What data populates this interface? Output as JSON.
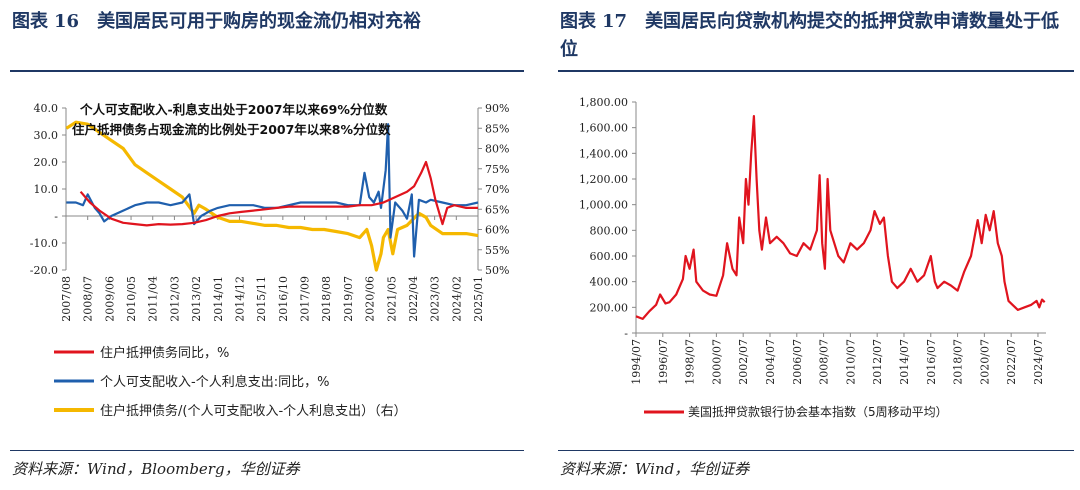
{
  "left": {
    "fig_label": "图表",
    "fig_num": "16",
    "title": "美国居民可用于购房的现金流仍相对充裕",
    "source": "资料来源：Wind，Bloomberg，华创证券",
    "colors": {
      "red": "#e0141e",
      "blue": "#1f5fad",
      "yellow": "#f5b800"
    },
    "chart_data": {
      "type": "line",
      "annotations": [
        "个人可支配收入-利息支出处于2007年以来69%分位数",
        "住户抵押债务占现金流的比例处于2007年以来8%分位数"
      ],
      "x_ticks": [
        "2007/08",
        "2008/07",
        "2009/06",
        "2010/05",
        "2011/04",
        "2012/03",
        "2013/02",
        "2014/01",
        "2014/12",
        "2015/11",
        "2016/10",
        "2017/09",
        "2018/08",
        "2019/07",
        "2020/06",
        "2021/05",
        "2022/04",
        "2023/03",
        "2024/02",
        "2025/01"
      ],
      "y_left": {
        "range": [
          -20,
          40
        ],
        "ticks": [
          "-20.0",
          "-10.0",
          "-",
          "10.0",
          "20.0",
          "30.0",
          "40.0"
        ]
      },
      "y_right": {
        "range": [
          50,
          90
        ],
        "ticks": [
          "50%",
          "55%",
          "60%",
          "65%",
          "70%",
          "75%",
          "80%",
          "85%",
          "90%"
        ]
      },
      "series": [
        {
          "name": "住户抵押债务同比，%",
          "axis": "left",
          "points": [
            [
              2008.2,
              9
            ],
            [
              2008.6,
              5
            ],
            [
              2009.0,
              2
            ],
            [
              2009.5,
              -1
            ],
            [
              2010.0,
              -2.5
            ],
            [
              2010.5,
              -3
            ],
            [
              2011.0,
              -3.5
            ],
            [
              2011.5,
              -3
            ],
            [
              2012.0,
              -3.2
            ],
            [
              2012.5,
              -3
            ],
            [
              2013.0,
              -2.5
            ],
            [
              2013.5,
              -1.5
            ],
            [
              2014.0,
              0
            ],
            [
              2014.5,
              1
            ],
            [
              2015.0,
              1.5
            ],
            [
              2015.5,
              2
            ],
            [
              2016.0,
              2.5
            ],
            [
              2016.5,
              3
            ],
            [
              2017.0,
              3.5
            ],
            [
              2017.5,
              3.5
            ],
            [
              2018.0,
              3.5
            ],
            [
              2018.5,
              3.5
            ],
            [
              2019.0,
              3.5
            ],
            [
              2019.5,
              3.5
            ],
            [
              2020.0,
              4
            ],
            [
              2020.5,
              4
            ],
            [
              2021.0,
              5
            ],
            [
              2021.5,
              7
            ],
            [
              2022.0,
              9
            ],
            [
              2022.3,
              11
            ],
            [
              2022.6,
              16
            ],
            [
              2022.8,
              20
            ],
            [
              2023.0,
              14
            ],
            [
              2023.2,
              6
            ],
            [
              2023.5,
              -3
            ],
            [
              2023.7,
              3
            ],
            [
              2024.0,
              4
            ],
            [
              2024.5,
              3
            ],
            [
              2025.0,
              3
            ]
          ]
        },
        {
          "name": "个人可支配收入-个人利息支出:同比，%",
          "axis": "left",
          "points": [
            [
              2007.6,
              5
            ],
            [
              2008.0,
              5
            ],
            [
              2008.3,
              4
            ],
            [
              2008.5,
              8
            ],
            [
              2008.8,
              3
            ],
            [
              2009.0,
              1
            ],
            [
              2009.2,
              -2
            ],
            [
              2009.5,
              0
            ],
            [
              2010.0,
              2
            ],
            [
              2010.5,
              4
            ],
            [
              2011.0,
              5
            ],
            [
              2011.5,
              5
            ],
            [
              2012.0,
              4
            ],
            [
              2012.5,
              5
            ],
            [
              2012.8,
              8
            ],
            [
              2013.0,
              -3
            ],
            [
              2013.3,
              0
            ],
            [
              2013.7,
              2
            ],
            [
              2014.0,
              3
            ],
            [
              2014.5,
              4
            ],
            [
              2015.0,
              4
            ],
            [
              2015.5,
              4
            ],
            [
              2016.0,
              3
            ],
            [
              2016.5,
              3
            ],
            [
              2017.0,
              4
            ],
            [
              2017.5,
              5
            ],
            [
              2018.0,
              5
            ],
            [
              2018.5,
              5
            ],
            [
              2019.0,
              5
            ],
            [
              2019.5,
              4
            ],
            [
              2020.0,
              4
            ],
            [
              2020.2,
              16
            ],
            [
              2020.4,
              7
            ],
            [
              2020.6,
              5
            ],
            [
              2020.8,
              9
            ],
            [
              2020.9,
              3
            ],
            [
              2021.1,
              17
            ],
            [
              2021.2,
              34
            ],
            [
              2021.3,
              -8
            ],
            [
              2021.5,
              5
            ],
            [
              2021.8,
              2
            ],
            [
              2022.0,
              -1
            ],
            [
              2022.2,
              8
            ],
            [
              2022.3,
              -15
            ],
            [
              2022.5,
              6
            ],
            [
              2022.8,
              5
            ],
            [
              2023.0,
              6
            ],
            [
              2023.5,
              5
            ],
            [
              2024.0,
              4
            ],
            [
              2024.5,
              4
            ],
            [
              2025.0,
              5
            ]
          ]
        },
        {
          "name": "住户抵押债务/(个人可支配收入-个人利息支出）（右）",
          "axis": "right",
          "points": [
            [
              2007.6,
              85
            ],
            [
              2008.0,
              86.5
            ],
            [
              2008.5,
              86
            ],
            [
              2009.0,
              84
            ],
            [
              2009.5,
              82
            ],
            [
              2010.0,
              80
            ],
            [
              2010.5,
              76
            ],
            [
              2011.0,
              74
            ],
            [
              2011.5,
              72
            ],
            [
              2012.0,
              70
            ],
            [
              2012.5,
              68
            ],
            [
              2013.0,
              64
            ],
            [
              2013.2,
              66
            ],
            [
              2013.5,
              65
            ],
            [
              2014.0,
              63
            ],
            [
              2014.5,
              62
            ],
            [
              2015.0,
              62
            ],
            [
              2015.5,
              61.5
            ],
            [
              2016.0,
              61
            ],
            [
              2016.5,
              61
            ],
            [
              2017.0,
              60.5
            ],
            [
              2017.5,
              60.5
            ],
            [
              2018.0,
              60
            ],
            [
              2018.5,
              60
            ],
            [
              2019.0,
              59.5
            ],
            [
              2019.5,
              59
            ],
            [
              2020.0,
              58
            ],
            [
              2020.3,
              60
            ],
            [
              2020.5,
              56
            ],
            [
              2020.7,
              50
            ],
            [
              2020.9,
              54
            ],
            [
              2021.0,
              58
            ],
            [
              2021.2,
              60
            ],
            [
              2021.4,
              54
            ],
            [
              2021.6,
              60
            ],
            [
              2022.0,
              61
            ],
            [
              2022.5,
              64
            ],
            [
              2022.8,
              63
            ],
            [
              2023.0,
              61
            ],
            [
              2023.5,
              59
            ],
            [
              2024.0,
              59
            ],
            [
              2024.5,
              59
            ],
            [
              2025.0,
              58.5
            ]
          ]
        }
      ]
    }
  },
  "right": {
    "fig_label": "图表",
    "fig_num": "17",
    "title": "美国居民向贷款机构提交的抵押贷款申请数量处于低位",
    "source": "资料来源：Wind，华创证券",
    "colors": {
      "red": "#e0141e"
    },
    "chart_data": {
      "type": "line",
      "x_ticks": [
        "1994/07",
        "1996/07",
        "1998/07",
        "2000/07",
        "2002/07",
        "2004/07",
        "2006/07",
        "2008/07",
        "2010/07",
        "2012/07",
        "2014/07",
        "2016/07",
        "2018/07",
        "2020/07",
        "2022/07",
        "2024/07"
      ],
      "y": {
        "range": [
          0,
          1800
        ],
        "ticks": [
          "-",
          "200.00",
          "400.00",
          "600.00",
          "800.00",
          "1,000.00",
          "1,200.00",
          "1,400.00",
          "1,600.00",
          "1,800.00"
        ]
      },
      "series": [
        {
          "name": "美国抵押贷款银行协会基本指数（5周移动平均）",
          "points": [
            [
              1994.5,
              130
            ],
            [
              1995.0,
              110
            ],
            [
              1995.5,
              170
            ],
            [
              1996.0,
              220
            ],
            [
              1996.3,
              300
            ],
            [
              1996.7,
              230
            ],
            [
              1997.0,
              240
            ],
            [
              1997.5,
              300
            ],
            [
              1998.0,
              420
            ],
            [
              1998.2,
              600
            ],
            [
              1998.5,
              500
            ],
            [
              1998.8,
              650
            ],
            [
              1999.0,
              400
            ],
            [
              1999.5,
              330
            ],
            [
              2000.0,
              300
            ],
            [
              2000.5,
              290
            ],
            [
              2001.0,
              450
            ],
            [
              2001.3,
              700
            ],
            [
              2001.7,
              500
            ],
            [
              2002.0,
              450
            ],
            [
              2002.2,
              900
            ],
            [
              2002.5,
              700
            ],
            [
              2002.7,
              1200
            ],
            [
              2002.9,
              1000
            ],
            [
              2003.1,
              1400
            ],
            [
              2003.3,
              1690
            ],
            [
              2003.5,
              1200
            ],
            [
              2003.7,
              800
            ],
            [
              2003.9,
              650
            ],
            [
              2004.2,
              900
            ],
            [
              2004.5,
              700
            ],
            [
              2005.0,
              750
            ],
            [
              2005.5,
              700
            ],
            [
              2006.0,
              620
            ],
            [
              2006.5,
              600
            ],
            [
              2007.0,
              700
            ],
            [
              2007.5,
              650
            ],
            [
              2008.0,
              800
            ],
            [
              2008.2,
              1230
            ],
            [
              2008.4,
              700
            ],
            [
              2008.6,
              500
            ],
            [
              2008.8,
              1200
            ],
            [
              2009.0,
              800
            ],
            [
              2009.3,
              700
            ],
            [
              2009.6,
              600
            ],
            [
              2010.0,
              550
            ],
            [
              2010.5,
              700
            ],
            [
              2011.0,
              650
            ],
            [
              2011.5,
              700
            ],
            [
              2012.0,
              800
            ],
            [
              2012.3,
              950
            ],
            [
              2012.7,
              850
            ],
            [
              2013.0,
              900
            ],
            [
              2013.3,
              600
            ],
            [
              2013.6,
              400
            ],
            [
              2014.0,
              350
            ],
            [
              2014.5,
              400
            ],
            [
              2015.0,
              500
            ],
            [
              2015.5,
              400
            ],
            [
              2016.0,
              450
            ],
            [
              2016.5,
              600
            ],
            [
              2016.8,
              400
            ],
            [
              2017.0,
              350
            ],
            [
              2017.5,
              400
            ],
            [
              2018.0,
              370
            ],
            [
              2018.5,
              330
            ],
            [
              2019.0,
              480
            ],
            [
              2019.5,
              600
            ],
            [
              2020.0,
              880
            ],
            [
              2020.3,
              700
            ],
            [
              2020.6,
              920
            ],
            [
              2020.9,
              800
            ],
            [
              2021.2,
              950
            ],
            [
              2021.5,
              700
            ],
            [
              2021.8,
              600
            ],
            [
              2022.0,
              400
            ],
            [
              2022.3,
              250
            ],
            [
              2022.6,
              220
            ],
            [
              2023.0,
              180
            ],
            [
              2023.5,
              200
            ],
            [
              2024.0,
              220
            ],
            [
              2024.4,
              250
            ],
            [
              2024.6,
              200
            ],
            [
              2024.8,
              260
            ],
            [
              2025.0,
              240
            ]
          ]
        }
      ]
    }
  }
}
